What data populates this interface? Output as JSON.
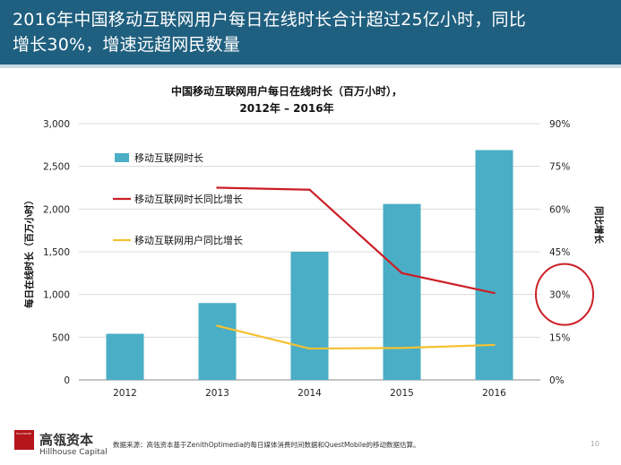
{
  "header": {
    "title_line1": "2016年中国移动互联网用户每日在线时长合计超过25亿小时，同比",
    "title_line2": "增长30%，增速远超网民数量"
  },
  "chart_data": {
    "type": "bar",
    "title_line1": "中国移动互联网用户每日在线时长（百万小时），",
    "title_line2": "2012年  –  2016年",
    "categories": [
      "2012",
      "2013",
      "2014",
      "2015",
      "2016"
    ],
    "ylabel_left": "每日在线时长（百万小时）",
    "ylabel_right": "同比增长",
    "ylim_left": [
      0,
      3000
    ],
    "ylim_right": [
      0,
      90
    ],
    "left_ticks": [
      "0",
      "500",
      "1,000",
      "1,500",
      "2,000",
      "2,500",
      "3,000"
    ],
    "right_ticks": [
      "0%",
      "15%",
      "30%",
      "45%",
      "60%",
      "75%",
      "90%"
    ],
    "series": [
      {
        "name": "移动互联网时长",
        "kind": "bar",
        "axis": "left",
        "color": "#4aaec6",
        "values": [
          540,
          900,
          1500,
          2060,
          2690
        ]
      },
      {
        "name": "移动互联网时长同比增长",
        "kind": "line",
        "axis": "right",
        "color": "#cc1f27",
        "values": [
          null,
          67.5,
          66.8,
          37.5,
          30.5
        ]
      },
      {
        "name": "移动互联网用户同比增长",
        "kind": "line",
        "axis": "right",
        "color": "#f5c131",
        "values": [
          null,
          19.0,
          11.0,
          11.2,
          12.3
        ]
      }
    ],
    "highlight": {
      "axis": "right",
      "value": 30,
      "color": "#cc1f27"
    }
  },
  "footer": {
    "logo_cn": "高瓴资本",
    "logo_en": "Hillhouse Capital",
    "logo_mark": "HILLHOUSE",
    "source": "数据来源：高瓴资本基于ZenithOptimedia的每日媒体消费时间数据和QuestMobile的移动数据估算。",
    "page": "10"
  }
}
